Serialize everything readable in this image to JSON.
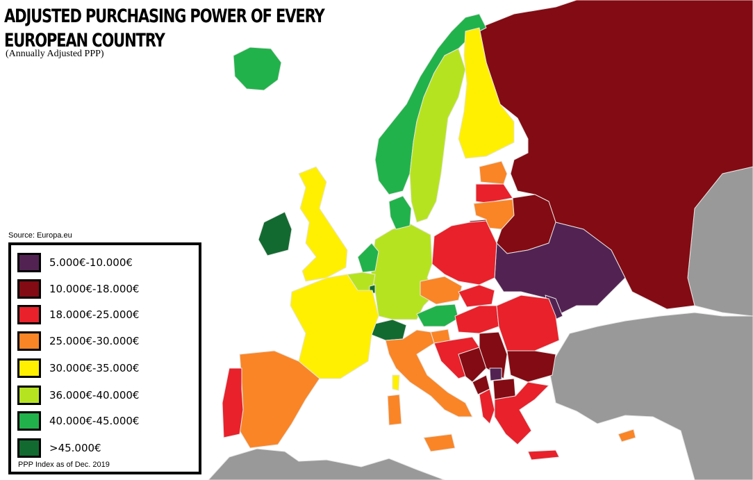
{
  "title": "ADJUSTED PURCHASING POWER OF EVERY EUROPEAN COUNTRY",
  "subtitle": "(Annually Adjusted PPP)",
  "source": "Source: Europa.eu",
  "note": "PPP Index as of Dec. 2019",
  "colors": {
    "sea": "#ffffff",
    "non_europe": "#999999",
    "border": "#e6e6e6"
  },
  "legend": [
    {
      "label": "5.000€-10.000€",
      "color": "#522352"
    },
    {
      "label": "10.000€-18.000€",
      "color": "#830b13"
    },
    {
      "label": "18.000€-25.000€",
      "color": "#e8212b"
    },
    {
      "label": "25.000€-30.000€",
      "color": "#fa8526"
    },
    {
      "label": "30.000€-35.000€",
      "color": "#ffef00"
    },
    {
      "label": "36.000€-40.000€",
      "color": "#b6e320"
    },
    {
      "label": "40.000€-45.000€",
      "color": "#22b24b"
    },
    {
      "label": ">45.000€",
      "color": "#136a30"
    }
  ]
}
